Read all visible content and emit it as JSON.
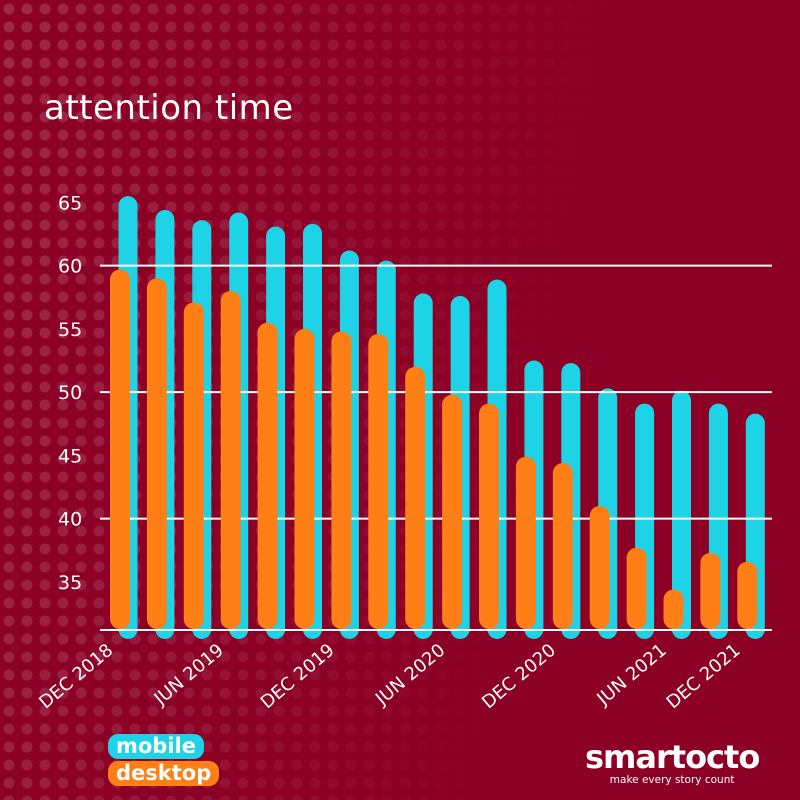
{
  "title": "attention time",
  "legend": {
    "mobile": "mobile",
    "desktop": "desktop"
  },
  "logo": {
    "name": "smartocto",
    "tagline": "make every story count"
  },
  "colors": {
    "background": "#8c0026",
    "mobile": "#1ed3e6",
    "desktop": "#ff7f17",
    "grid": "#ffffff"
  },
  "chart_data": {
    "type": "bar",
    "title": "attention time",
    "xlabel": "",
    "ylabel": "",
    "ylim": [
      31.2,
      67
    ],
    "yticks": [
      35,
      40,
      45,
      50,
      55,
      60,
      65
    ],
    "gridlines": [
      60,
      50,
      40
    ],
    "x_tick_labels": [
      {
        "index": 0,
        "label": "DEC 2018"
      },
      {
        "index": 3,
        "label": "JUN 2019"
      },
      {
        "index": 6,
        "label": "DEC 2019"
      },
      {
        "index": 9,
        "label": "JUN 2020"
      },
      {
        "index": 12,
        "label": "DEC 2020"
      },
      {
        "index": 15,
        "label": "JUN 2021"
      },
      {
        "index": 17,
        "label": "DEC 2021"
      }
    ],
    "legend_position": "bottom-left",
    "series": [
      {
        "name": "mobile",
        "values": [
          65.5,
          64.4,
          63.6,
          64.2,
          63.1,
          63.3,
          61.2,
          60.4,
          57.8,
          57.6,
          58.9,
          52.5,
          52.3,
          50.3,
          49.1,
          50.1,
          49.1,
          48.3
        ]
      },
      {
        "name": "desktop",
        "values": [
          59.7,
          59.0,
          57.1,
          58.0,
          55.5,
          55.0,
          54.8,
          54.6,
          52.0,
          49.8,
          49.1,
          44.9,
          44.4,
          41.0,
          37.7,
          34.4,
          37.3,
          36.6
        ]
      }
    ]
  }
}
